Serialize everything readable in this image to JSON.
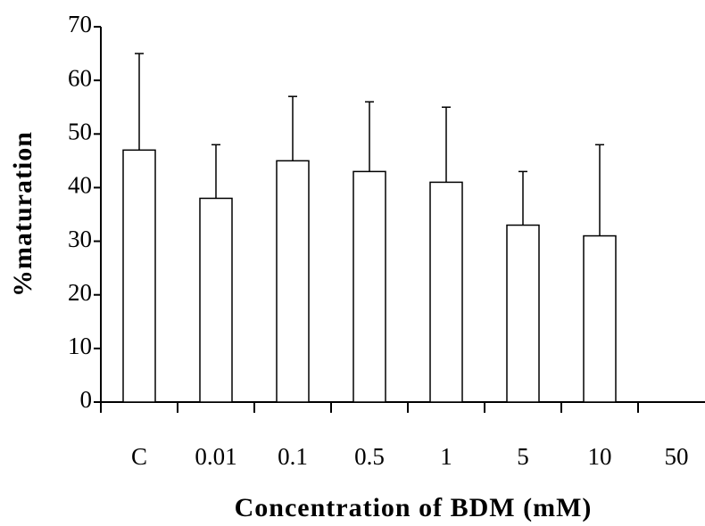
{
  "chart_data": {
    "type": "bar",
    "x_label": "Concentration of BDM (mM)",
    "y_label": "%maturation",
    "categories": [
      "C",
      "0.01",
      "0.1",
      "0.5",
      "1",
      "5",
      "10",
      "50"
    ],
    "values": [
      47,
      38,
      45,
      43,
      41,
      33,
      31,
      0
    ],
    "errors": [
      18,
      10,
      12,
      13,
      14,
      10,
      17,
      null
    ],
    "color": "#ffffff",
    "ylim": [
      0,
      70
    ],
    "yticks": [
      0,
      10,
      20,
      30,
      40,
      50,
      60,
      70
    ],
    "grid": false
  }
}
